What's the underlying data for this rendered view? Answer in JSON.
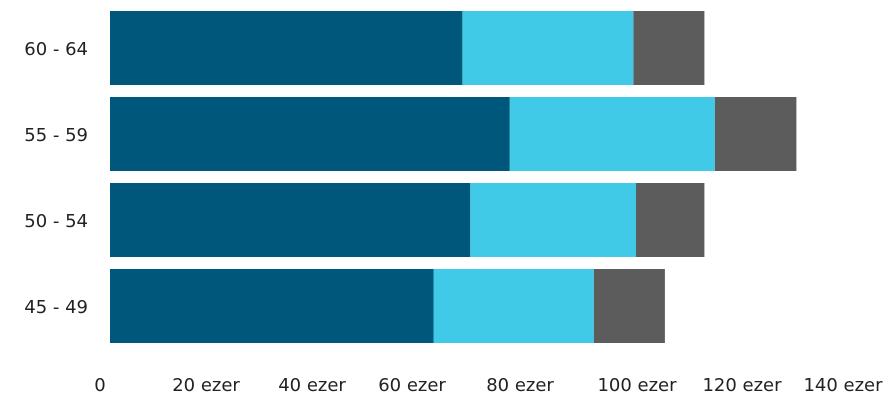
{
  "chart_data": {
    "type": "bar",
    "orientation": "horizontal",
    "stacked": true,
    "categories": [
      "60 - 64",
      "55 - 59",
      "50 - 54",
      "45 - 49"
    ],
    "series": [
      {
        "values": [
          67,
          76,
          68.5,
          61.5
        ]
      },
      {
        "values": [
          32.5,
          39,
          31.5,
          30.5
        ]
      },
      {
        "values": [
          13.5,
          15.5,
          13,
          13.5
        ]
      }
    ],
    "colors": [
      "#00577c",
      "#41cae8",
      "#5c5c5c"
    ],
    "x_tick_labels": [
      "0",
      "20 ezer",
      "40 ezer",
      "60 ezer",
      "80 ezer",
      "100 ezer",
      "120 ezer",
      "140 ezer"
    ],
    "xlim": [
      0,
      140
    ],
    "grid": false,
    "legend": "none"
  }
}
